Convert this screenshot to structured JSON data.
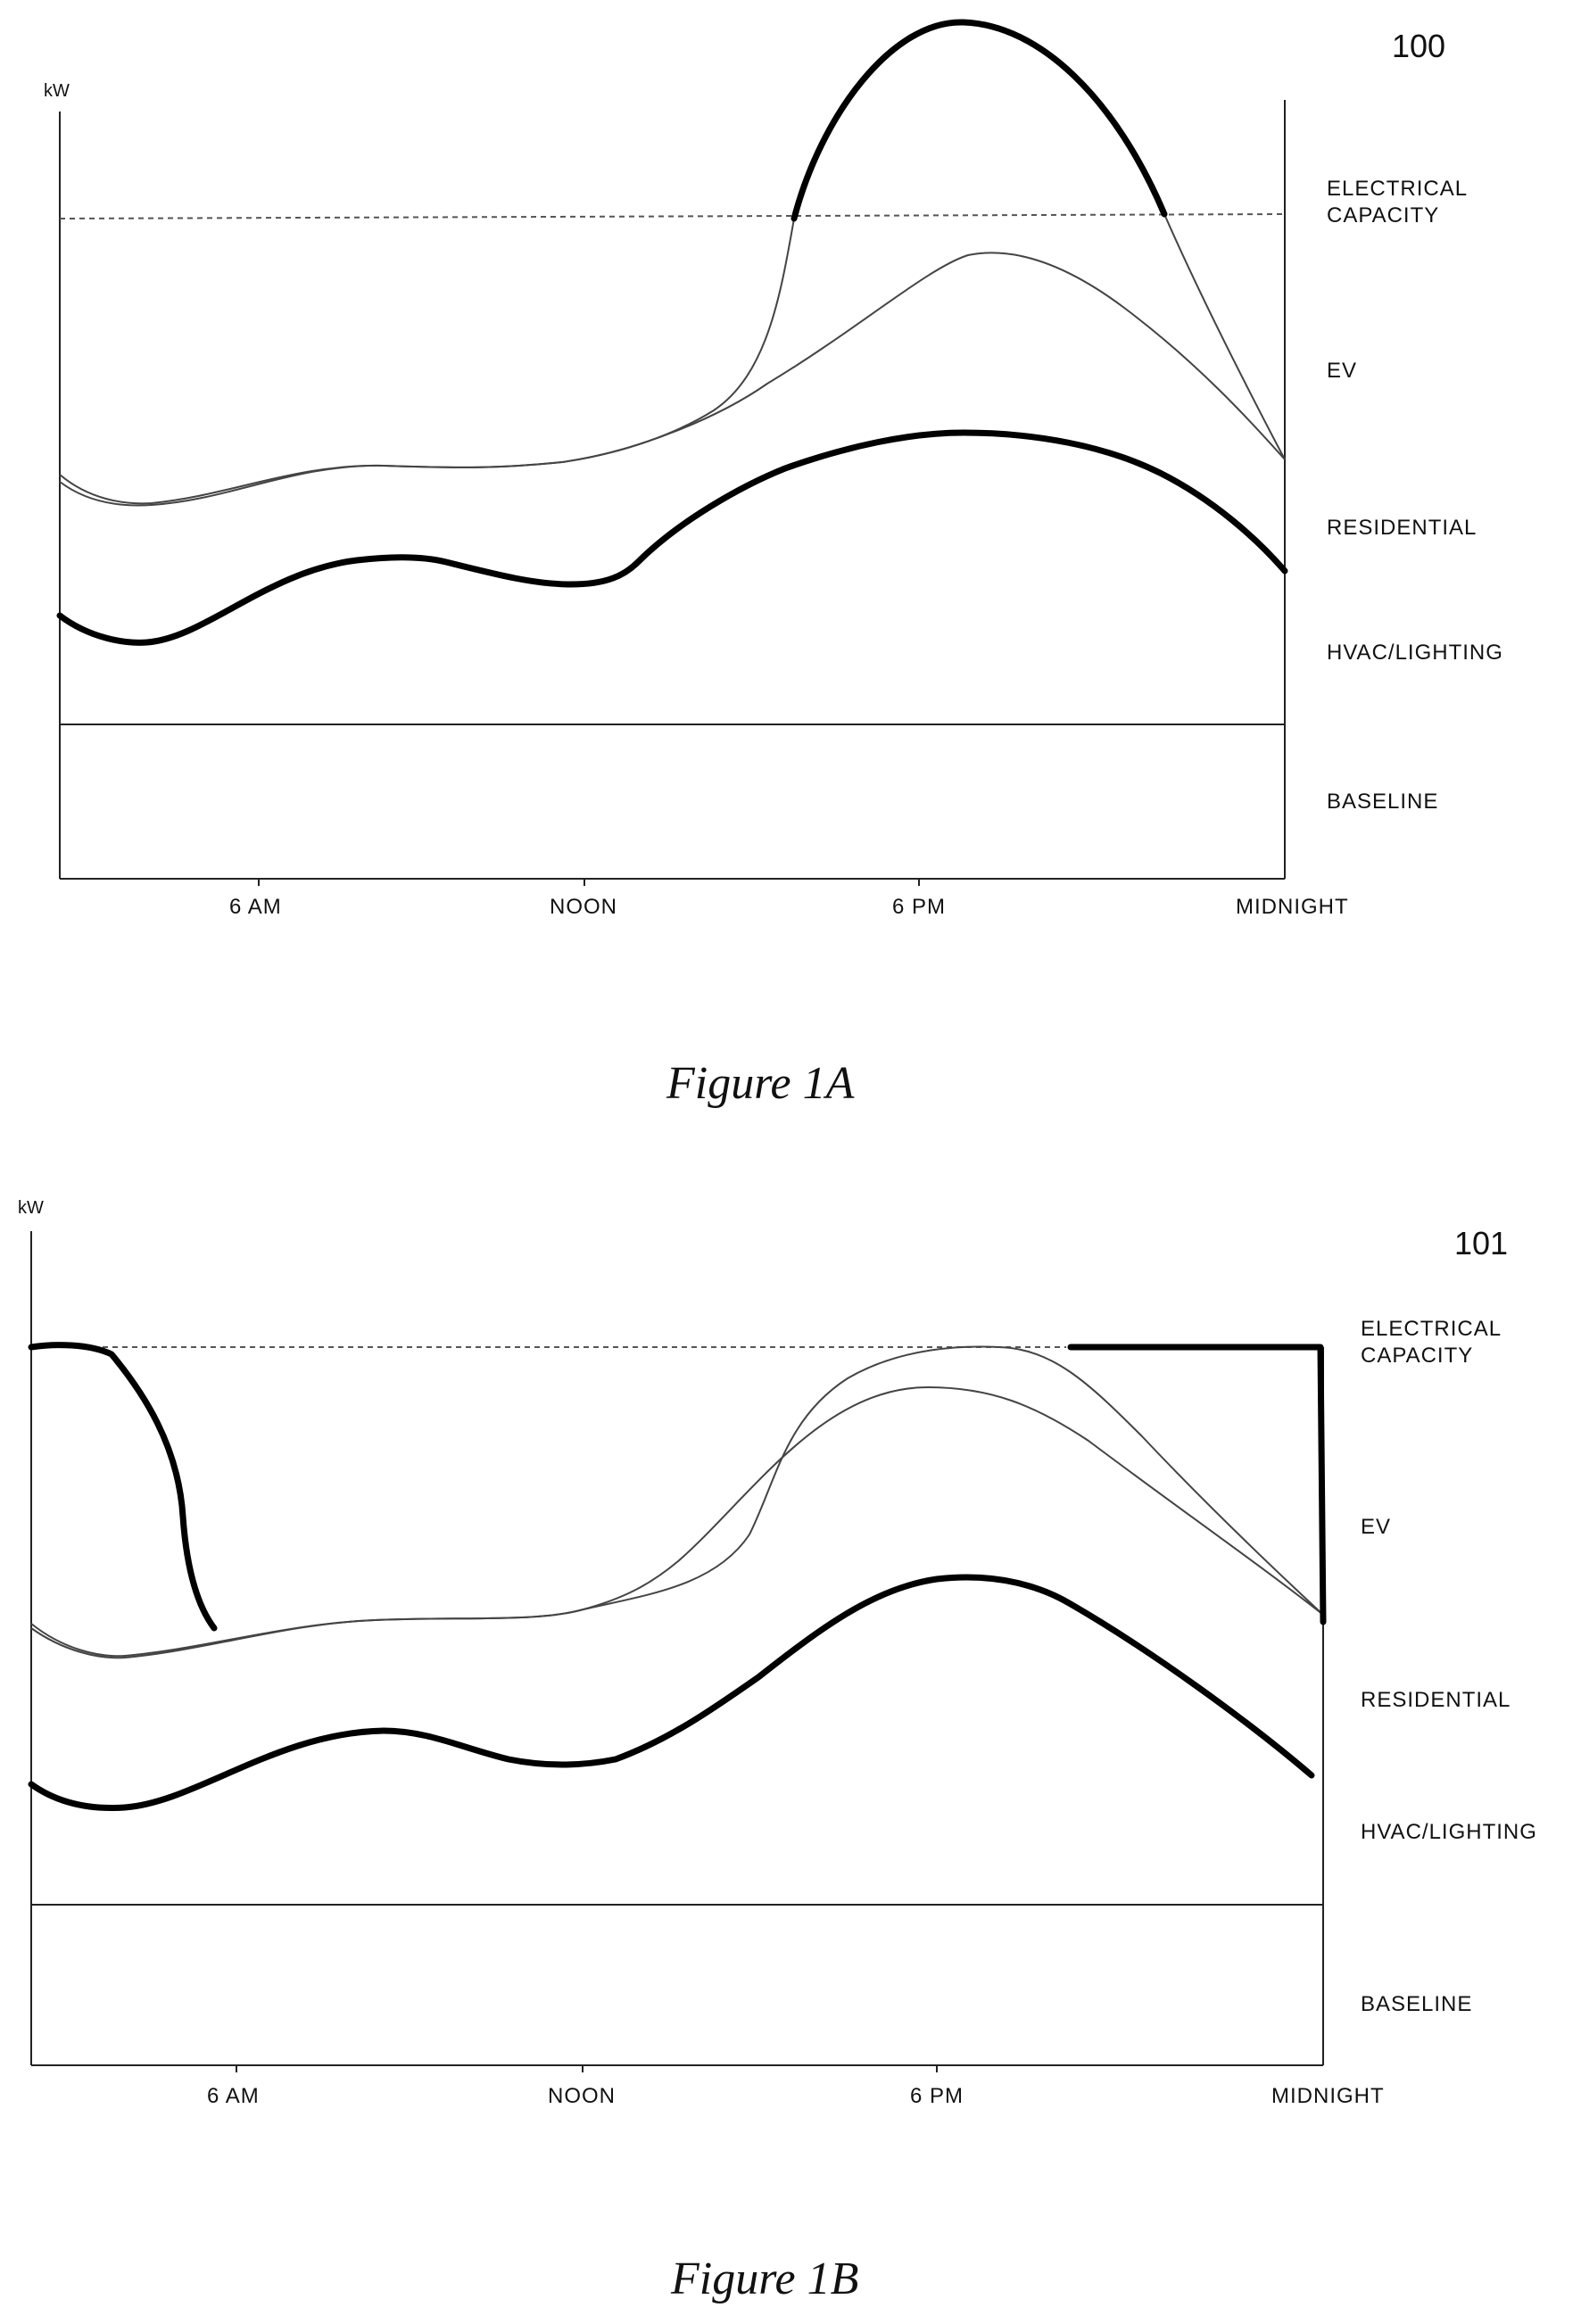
{
  "figures": [
    {
      "ref_number": "100",
      "unit_label": "kW",
      "caption": "Figure 1A",
      "x_ticks": [
        "6 AM",
        "NOON",
        "6 PM",
        "MIDNIGHT"
      ],
      "region_labels": {
        "capacity": [
          "ELECTRICAL",
          "CAPACITY"
        ],
        "ev": "EV",
        "residential": "RESIDENTIAL",
        "hvac": "HVAC/LIGHTING",
        "baseline": "BASELINE"
      }
    },
    {
      "ref_number": "101",
      "unit_label": "kW",
      "caption": "Figure 1B",
      "x_ticks": [
        "6 AM",
        "NOON",
        "6 PM",
        "MIDNIGHT"
      ],
      "region_labels": {
        "capacity": [
          "ELECTRICAL",
          "CAPACITY"
        ],
        "ev": "EV",
        "residential": "RESIDENTIAL",
        "hvac": "HVAC/LIGHTING",
        "baseline": "BASELINE"
      }
    }
  ]
}
